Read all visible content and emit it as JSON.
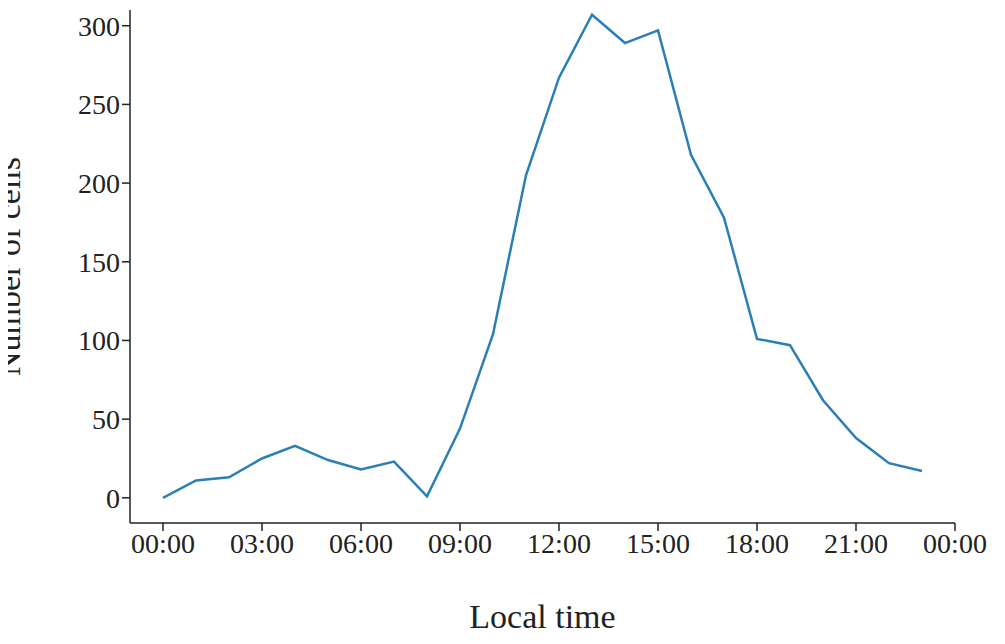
{
  "chart_data": {
    "type": "line",
    "x_label": "Local time",
    "y_label": "Number of cells",
    "x": [
      0,
      1,
      2,
      3,
      4,
      5,
      6,
      7,
      8,
      9,
      10,
      11,
      12,
      13,
      14,
      15,
      16,
      17,
      18,
      19,
      20,
      21,
      22,
      23
    ],
    "values": [
      0,
      11,
      13,
      25,
      33,
      24,
      18,
      23,
      1,
      44,
      104,
      205,
      267,
      307,
      289,
      297,
      218,
      178,
      101,
      97,
      62,
      38,
      22,
      17
    ],
    "color": "#2a7fb5",
    "xlim": [
      -1,
      24
    ],
    "xticks": [
      {
        "value": 0,
        "label": "00:00"
      },
      {
        "value": 3,
        "label": "03:00"
      },
      {
        "value": 6,
        "label": "06:00"
      },
      {
        "value": 9,
        "label": "09:00"
      },
      {
        "value": 12,
        "label": "12:00"
      },
      {
        "value": 15,
        "label": "15:00"
      },
      {
        "value": 18,
        "label": "18:00"
      },
      {
        "value": 21,
        "label": "21:00"
      },
      {
        "value": 24,
        "label": "00:00"
      }
    ],
    "ylim": [
      -16,
      310
    ],
    "yticks": [
      0,
      50,
      100,
      150,
      200,
      250,
      300
    ],
    "grid": false
  }
}
